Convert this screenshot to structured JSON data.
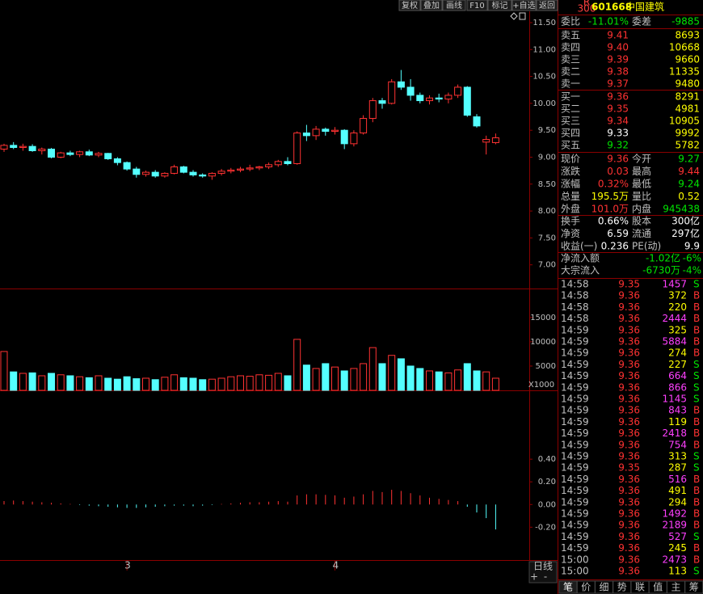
{
  "toolbar": [
    "复权",
    "叠加",
    "画线",
    "F10",
    "标记",
    "+自选",
    "返回"
  ],
  "stock": {
    "badge_top": "R",
    "badge_bottom": "300",
    "code": "601668",
    "name": "中国建筑"
  },
  "order_summary": {
    "label1": "委比",
    "value1": "-11.01%",
    "label2": "委差",
    "value2": "-9885"
  },
  "asks": [
    {
      "label": "卖五",
      "price": "9.41",
      "volume": "8693",
      "color": "#ff3232"
    },
    {
      "label": "卖四",
      "price": "9.40",
      "volume": "10668",
      "color": "#ff3232"
    },
    {
      "label": "卖三",
      "price": "9.39",
      "volume": "9660",
      "color": "#ff3232"
    },
    {
      "label": "卖二",
      "price": "9.38",
      "volume": "11335",
      "color": "#ff3232"
    },
    {
      "label": "卖一",
      "price": "9.37",
      "volume": "9480",
      "color": "#ff3232"
    }
  ],
  "bids": [
    {
      "label": "买一",
      "price": "9.36",
      "volume": "8291",
      "color": "#ff3232"
    },
    {
      "label": "买二",
      "price": "9.35",
      "volume": "4981",
      "color": "#ff3232"
    },
    {
      "label": "买三",
      "price": "9.34",
      "volume": "10905",
      "color": "#ff3232"
    },
    {
      "label": "买四",
      "price": "9.33",
      "volume": "9992",
      "color": "#ffffff"
    },
    {
      "label": "买五",
      "price": "9.32",
      "volume": "5782",
      "color": "#00e600"
    }
  ],
  "stats": [
    [
      {
        "label": "现价",
        "value": "9.36",
        "color": "#ff3232"
      },
      {
        "label": "今开",
        "value": "9.27",
        "color": "#00e600"
      }
    ],
    [
      {
        "label": "涨跌",
        "value": "0.03",
        "color": "#ff3232"
      },
      {
        "label": "最高",
        "value": "9.44",
        "color": "#ff3232"
      }
    ],
    [
      {
        "label": "涨幅",
        "value": "0.32%",
        "color": "#ff3232"
      },
      {
        "label": "最低",
        "value": "9.24",
        "color": "#00e600"
      }
    ],
    [
      {
        "label": "总量",
        "value": "195.5万",
        "color": "#ffff00"
      },
      {
        "label": "量比",
        "value": "0.52",
        "color": "#ffff00"
      }
    ],
    [
      {
        "label": "外盘",
        "value": "101.0万",
        "color": "#ff3232"
      },
      {
        "label": "内盘",
        "value": "945438",
        "color": "#00e600"
      }
    ],
    [
      {
        "label": "换手",
        "value": "0.66%",
        "color": "#ffffff"
      },
      {
        "label": "股本",
        "value": "300亿",
        "color": "#ffffff"
      }
    ],
    [
      {
        "label": "净资",
        "value": "6.59",
        "color": "#ffffff"
      },
      {
        "label": "流通",
        "value": "297亿",
        "color": "#ffffff"
      }
    ],
    [
      {
        "label": "收益(一)",
        "value": "0.236",
        "color": "#ffffff"
      },
      {
        "label": "PE(动)",
        "value": "9.9",
        "color": "#ffffff"
      }
    ]
  ],
  "flows": [
    {
      "label": "净流入额",
      "value": "-1.02亿",
      "pct": "-6%"
    },
    {
      "label": "大宗流入",
      "value": "-6730万",
      "pct": "-4%"
    }
  ],
  "trades": [
    {
      "time": "14:58",
      "price": "9.35",
      "volume": 1457,
      "side": "S"
    },
    {
      "time": "14:58",
      "price": "9.36",
      "volume": 372,
      "side": "B"
    },
    {
      "time": "14:58",
      "price": "9.36",
      "volume": 220,
      "side": "B"
    },
    {
      "time": "14:58",
      "price": "9.36",
      "volume": 2444,
      "side": "B"
    },
    {
      "time": "14:59",
      "price": "9.36",
      "volume": 325,
      "side": "B"
    },
    {
      "time": "14:59",
      "price": "9.36",
      "volume": 5884,
      "side": "B"
    },
    {
      "time": "14:59",
      "price": "9.36",
      "volume": 274,
      "side": "B"
    },
    {
      "time": "14:59",
      "price": "9.36",
      "volume": 227,
      "side": "S"
    },
    {
      "time": "14:59",
      "price": "9.36",
      "volume": 664,
      "side": "S"
    },
    {
      "time": "14:59",
      "price": "9.36",
      "volume": 866,
      "side": "S"
    },
    {
      "time": "14:59",
      "price": "9.36",
      "volume": 1145,
      "side": "S"
    },
    {
      "time": "14:59",
      "price": "9.36",
      "volume": 843,
      "side": "B"
    },
    {
      "time": "14:59",
      "price": "9.36",
      "volume": 119,
      "side": "B"
    },
    {
      "time": "14:59",
      "price": "9.36",
      "volume": 2418,
      "side": "B"
    },
    {
      "time": "14:59",
      "price": "9.36",
      "volume": 754,
      "side": "B"
    },
    {
      "time": "14:59",
      "price": "9.36",
      "volume": 313,
      "side": "S"
    },
    {
      "time": "14:59",
      "price": "9.35",
      "volume": 287,
      "side": "S"
    },
    {
      "time": "14:59",
      "price": "9.36",
      "volume": 516,
      "side": "B"
    },
    {
      "time": "14:59",
      "price": "9.36",
      "volume": 491,
      "side": "B"
    },
    {
      "time": "14:59",
      "price": "9.36",
      "volume": 294,
      "side": "B"
    },
    {
      "time": "14:59",
      "price": "9.36",
      "volume": 1492,
      "side": "B"
    },
    {
      "time": "14:59",
      "price": "9.36",
      "volume": 2189,
      "side": "B"
    },
    {
      "time": "14:59",
      "price": "9.36",
      "volume": 527,
      "side": "S"
    },
    {
      "time": "14:59",
      "price": "9.36",
      "volume": 245,
      "side": "B"
    },
    {
      "time": "15:00",
      "price": "9.36",
      "volume": 2473,
      "side": "B"
    },
    {
      "time": "15:00",
      "price": "9.36",
      "volume": 113,
      "side": "S"
    }
  ],
  "tabs": [
    "笔",
    "价",
    "细",
    "势",
    "联",
    "值",
    "主",
    "筹"
  ],
  "chart_data": {
    "type": "candlestick",
    "categories": [
      null,
      null,
      null,
      null,
      null,
      null,
      null,
      null,
      null,
      null,
      null,
      null,
      null,
      "3",
      null,
      null,
      null,
      null,
      null,
      null,
      null,
      null,
      null,
      null,
      null,
      null,
      null,
      null,
      null,
      null,
      null,
      null,
      null,
      null,
      null,
      "4",
      null,
      null,
      null,
      null,
      null,
      null,
      null,
      null,
      null,
      null,
      null,
      null,
      null,
      null,
      null,
      null,
      null
    ],
    "open": [
      9.15,
      9.22,
      9.18,
      9.2,
      9.12,
      9.15,
      9.0,
      9.08,
      9.05,
      9.1,
      9.04,
      9.07,
      8.97,
      8.9,
      8.78,
      8.68,
      8.72,
      8.65,
      8.7,
      8.82,
      8.72,
      8.67,
      8.65,
      8.7,
      8.74,
      8.76,
      8.78,
      8.8,
      8.82,
      8.86,
      8.92,
      8.88,
      9.45,
      9.4,
      9.52,
      9.48,
      9.5,
      9.25,
      9.45,
      9.72,
      10.05,
      10.0,
      10.4,
      10.3,
      10.15,
      10.05,
      10.1,
      10.08,
      10.15,
      10.3,
      9.75,
      9.28,
      9.27
    ],
    "high": [
      9.25,
      9.28,
      9.25,
      9.24,
      9.18,
      9.17,
      9.1,
      9.12,
      9.12,
      9.14,
      9.1,
      9.08,
      9.0,
      8.92,
      8.82,
      8.75,
      8.76,
      8.72,
      8.86,
      8.84,
      8.76,
      8.7,
      8.72,
      8.78,
      8.8,
      8.82,
      8.86,
      8.84,
      8.9,
      8.95,
      9.0,
      9.48,
      9.6,
      9.58,
      9.55,
      9.56,
      9.52,
      9.5,
      9.78,
      10.1,
      10.1,
      10.45,
      10.62,
      10.45,
      10.2,
      10.15,
      10.18,
      10.2,
      10.35,
      10.32,
      9.8,
      9.4,
      9.44
    ],
    "low": [
      9.1,
      9.15,
      9.12,
      9.1,
      9.05,
      8.98,
      8.98,
      9.02,
      9.0,
      9.02,
      9.0,
      8.95,
      8.85,
      8.75,
      8.62,
      8.64,
      8.62,
      8.62,
      8.68,
      8.7,
      8.64,
      8.62,
      8.58,
      8.66,
      8.7,
      8.72,
      8.74,
      8.76,
      8.78,
      8.82,
      8.85,
      8.86,
      9.3,
      9.32,
      9.4,
      9.42,
      9.15,
      9.2,
      9.42,
      9.65,
      9.9,
      9.98,
      10.25,
      10.05,
      10.0,
      9.98,
      10.02,
      10.0,
      10.1,
      9.75,
      9.55,
      9.05,
      9.24
    ],
    "close": [
      9.22,
      9.18,
      9.2,
      9.12,
      9.15,
      9.0,
      9.08,
      9.05,
      9.1,
      9.04,
      9.07,
      8.97,
      8.9,
      8.78,
      8.68,
      8.72,
      8.65,
      8.7,
      8.82,
      8.72,
      8.67,
      8.65,
      8.7,
      8.74,
      8.76,
      8.78,
      8.8,
      8.82,
      8.86,
      8.92,
      8.88,
      9.45,
      9.4,
      9.52,
      9.48,
      9.5,
      9.25,
      9.45,
      9.72,
      10.05,
      10.0,
      10.4,
      10.3,
      10.15,
      10.05,
      10.1,
      10.08,
      10.15,
      10.3,
      9.78,
      9.58,
      9.33,
      9.36
    ],
    "up_color": "#ff3232",
    "down_color": "#54ffff",
    "ylim": [
      6.56,
      11.65
    ],
    "yticks": [
      {
        "value": 11.5,
        "label": "11.50"
      },
      {
        "value": 11,
        "label": "11.00"
      },
      {
        "value": 10.5,
        "label": "10.50"
      },
      {
        "value": 10,
        "label": "10.00"
      },
      {
        "value": 9.5,
        "label": "9.50"
      },
      {
        "value": 9,
        "label": "9.00"
      },
      {
        "value": 8.5,
        "label": "8.50"
      },
      {
        "value": 8,
        "label": "8.00"
      },
      {
        "value": 7.5,
        "label": "7.50"
      },
      {
        "value": 7,
        "label": "7.00"
      }
    ],
    "volume": {
      "values": [
        8000,
        3800,
        3500,
        3600,
        3000,
        3500,
        3200,
        3000,
        2800,
        2600,
        3000,
        2500,
        2300,
        2800,
        2400,
        2500,
        2200,
        2700,
        3200,
        2600,
        2500,
        2200,
        2300,
        2500,
        2800,
        3000,
        2900,
        3200,
        3100,
        3500,
        3000,
        10500,
        5200,
        4500,
        5500,
        4800,
        4000,
        4500,
        5500,
        8800,
        5500,
        7200,
        6500,
        5000,
        4500,
        4000,
        3800,
        3600,
        4200,
        5500,
        4000,
        3800,
        2500
      ],
      "ylim": [
        0,
        20800
      ],
      "yticks": [
        15000,
        10000,
        5000
      ],
      "unit_label": "X1000"
    },
    "macd": {
      "values": [
        0.03,
        0.035,
        0.03,
        0.025,
        0.02,
        0.015,
        0.01,
        0.005,
        -0.005,
        -0.01,
        -0.015,
        -0.02,
        -0.025,
        -0.03,
        -0.03,
        -0.025,
        -0.02,
        -0.015,
        -0.01,
        -0.01,
        -0.015,
        -0.01,
        -0.005,
        0.005,
        0.01,
        0.015,
        0.02,
        0.02,
        0.025,
        0.03,
        0.025,
        0.08,
        0.09,
        0.09,
        0.085,
        0.08,
        0.06,
        0.07,
        0.09,
        0.12,
        0.11,
        0.13,
        0.12,
        0.1,
        0.08,
        0.06,
        0.05,
        0.04,
        0.03,
        -0.02,
        -0.07,
        -0.12,
        -0.22
      ],
      "ylim": [
        -0.49,
        1.0
      ],
      "yticks": [
        {
          "value": 0.4,
          "label": "0.40"
        },
        {
          "value": 0.2,
          "label": "0.20"
        },
        {
          "value": 0,
          "label": "0.00"
        },
        {
          "value": -0.2,
          "label": "-0.20"
        }
      ]
    },
    "period": "日线",
    "zoom": [
      "+",
      "-"
    ]
  }
}
